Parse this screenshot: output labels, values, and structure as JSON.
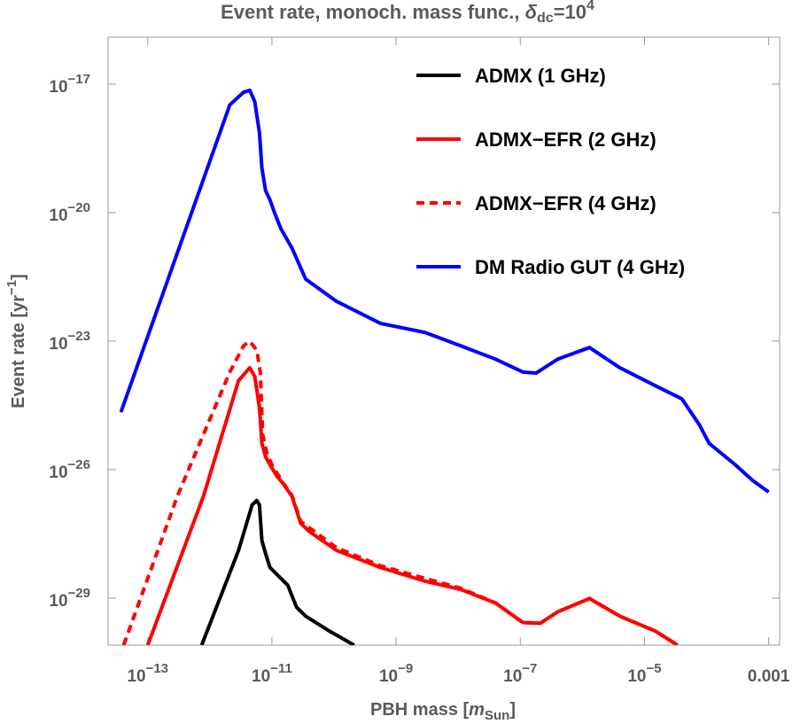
{
  "chart_data": {
    "type": "line",
    "title": [
      "Event rate, monoch. mass func., ",
      "δ",
      "dc",
      "=10",
      "4"
    ],
    "x_label": [
      "PBH mass [",
      "m",
      "Sun",
      "]"
    ],
    "y_label": [
      "Event rate [yr",
      "−1",
      "]"
    ],
    "xscale": "log",
    "yscale": "log",
    "xlim": [
      2.3e-14,
      0.0015
    ],
    "ylim": [
      8e-31,
      1.25e-16
    ],
    "xticks": [
      {
        "value": 1e-13,
        "label": "10−13"
      },
      {
        "value": 1e-11,
        "label": "10−11"
      },
      {
        "value": 1e-09,
        "label": "10−9"
      },
      {
        "value": 1e-07,
        "label": "10−7"
      },
      {
        "value": 1e-05,
        "label": "10−5"
      },
      0.001
    ],
    "yticks": [
      {
        "value": 1e-17,
        "label": "10−17"
      },
      {
        "value": 1e-20,
        "label": "10−20"
      },
      {
        "value": 1e-23,
        "label": "10−23"
      },
      {
        "value": 1e-26,
        "label": "10−26"
      },
      {
        "value": 1e-29,
        "label": "10−29"
      }
    ],
    "legend": "upper right",
    "series": [
      {
        "name": "ADMX (1 GHz)",
        "color": "#000000",
        "dash": "solid",
        "x": [
          7.4e-13,
          2.9e-12,
          4.8e-12,
          5.7e-12,
          6.3e-12,
          6.9e-12,
          7.9e-12,
          9.3e-12,
          1.3e-11,
          1.8e-11,
          2.5e-11,
          3.5e-11,
          7.9e-11,
          2.1e-10
        ],
        "values": [
          8e-31,
          1.3e-28,
          1.5e-27,
          1.9e-27,
          1.5e-27,
          2.2e-28,
          1.1e-28,
          5.2e-29,
          3.2e-29,
          2e-29,
          6.1e-30,
          3.8e-30,
          1.8e-30,
          8e-31
        ]
      },
      {
        "name": "ADMX−EFR (2 GHz)",
        "color": "#ff0000",
        "dash": "solid",
        "x": [
          1e-13,
          7.9e-13,
          2.9e-12,
          4.4e-12,
          5.3e-12,
          6.3e-12,
          6.9e-12,
          7.9e-12,
          9.3e-12,
          1.2e-11,
          1.5e-11,
          2.1e-11,
          2.9e-11,
          4.1e-11,
          1.1e-10,
          5.6e-10,
          2.9e-09,
          1.1e-08,
          4e-08,
          1.1e-07,
          2.1e-07,
          4e-07,
          1.3e-06,
          4e-06,
          1.5e-05,
          3.4e-05
        ],
        "values": [
          8e-31,
          2.4e-27,
          1.2e-24,
          2.4e-24,
          1.5e-24,
          2.8e-25,
          4.1e-26,
          2e-26,
          1.3e-26,
          7.1e-27,
          4.8e-27,
          2.4e-27,
          5.6e-28,
          3.5e-28,
          1.3e-28,
          5.2e-29,
          2.5e-29,
          1.6e-29,
          7.7e-30,
          2.7e-30,
          2.6e-30,
          4.8e-30,
          9.8e-30,
          3.8e-30,
          1.7e-30,
          8e-31
        ]
      },
      {
        "name": "ADMX−EFR (4 GHz)",
        "color": "#ff0000",
        "dash": "dashed",
        "x": [
          4.1e-14,
          3e-13,
          2.1e-12,
          3.5e-12,
          4.4e-12,
          5.7e-12,
          6.5e-12,
          7.1e-12,
          8.2e-12,
          1e-11,
          1.5e-11,
          2.1e-11,
          2.9e-11,
          1.1e-10,
          5.6e-10,
          2.9e-09,
          1.1e-08,
          4e-08,
          1.1e-07,
          2.1e-07,
          4e-07,
          1.3e-06,
          4e-06,
          1.5e-05,
          3.4e-05
        ],
        "values": [
          8e-31,
          2.4e-27,
          1.9e-24,
          7.8e-24,
          9.9e-24,
          6.2e-24,
          1.9e-24,
          6.6e-26,
          2.6e-26,
          1.3e-26,
          5e-27,
          2.5e-27,
          6.2e-28,
          1.5e-28,
          5.7e-29,
          2.9e-29,
          1.7e-29,
          7.7e-30,
          2.7e-30,
          2.6e-30,
          4.8e-30,
          9.8e-30,
          3.8e-30,
          1.7e-30,
          8e-31
        ]
      },
      {
        "name": "DM Radio GUT (4 GHz)",
        "color": "#0000ff",
        "dash": "solid",
        "x": [
          3.7e-14,
          2.1e-12,
          3.5e-12,
          4.4e-12,
          5.3e-12,
          6.3e-12,
          6.9e-12,
          7.9e-12,
          9.3e-12,
          1.1e-11,
          1.4e-11,
          2.1e-11,
          3.5e-11,
          1.1e-10,
          5.6e-10,
          2.9e-09,
          1.1e-08,
          4e-08,
          1.1e-07,
          1.8e-07,
          4e-07,
          1.3e-06,
          4e-06,
          1.5e-05,
          4e-05,
          7.7e-05,
          0.00011,
          0.00029,
          0.00055,
          0.001
        ],
        "values": [
          2.2e-25,
          3.3e-18,
          6.5e-18,
          7.2e-18,
          3.9e-18,
          7.3e-19,
          1.1e-19,
          3.3e-20,
          2e-20,
          1e-20,
          4.2e-21,
          1.5e-21,
          2.8e-22,
          8.5e-23,
          2.6e-23,
          1.6e-23,
          7.8e-24,
          3.8e-24,
          1.9e-24,
          1.8e-24,
          3.8e-24,
          7.1e-24,
          2.4e-24,
          9.1e-25,
          4.5e-25,
          1.1e-25,
          4.1e-26,
          1.3e-26,
          5.6e-27,
          3e-27
        ]
      }
    ]
  }
}
